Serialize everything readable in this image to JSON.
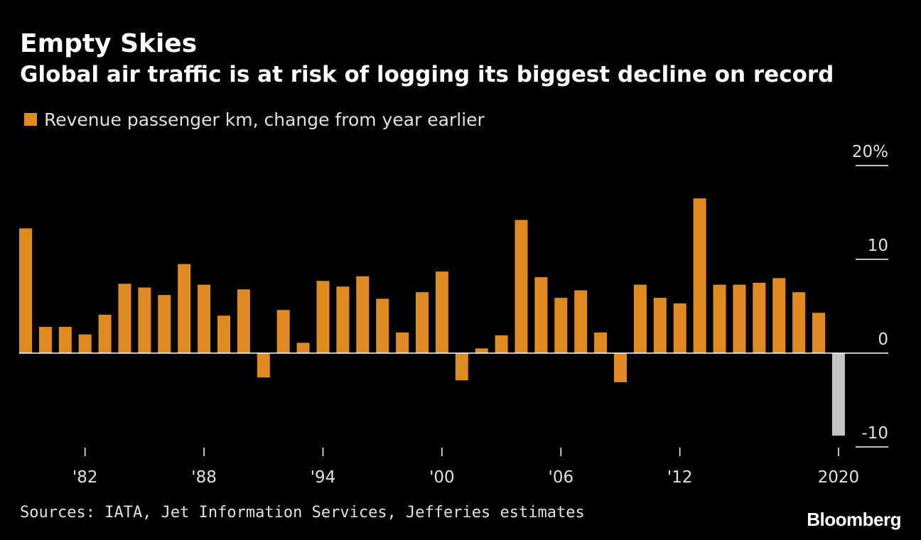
{
  "header": {
    "title": "Empty Skies",
    "subtitle": "Global air traffic is at risk of logging its biggest decline on record"
  },
  "legend": {
    "label": "Revenue passenger km, change from year earlier"
  },
  "footer": {
    "source": "Sources: IATA, Jet Information Services, Jefferies estimates",
    "brand": "Bloomberg"
  },
  "colors": {
    "background": "#000000",
    "bar": "#e08a22",
    "estimate_bar": "#c4c4c4",
    "text": "#ffffff"
  },
  "chart_data": {
    "type": "bar",
    "title": "Empty Skies",
    "subtitle": "Global air traffic is at risk of logging its biggest decline on record",
    "series": [
      {
        "name": "Revenue passenger km, change from year earlier",
        "x": [
          1979,
          1980,
          1981,
          1982,
          1983,
          1984,
          1985,
          1986,
          1987,
          1988,
          1989,
          1990,
          1991,
          1992,
          1993,
          1994,
          1995,
          1996,
          1997,
          1998,
          1999,
          2000,
          2001,
          2002,
          2003,
          2004,
          2005,
          2006,
          2007,
          2008,
          2009,
          2010,
          2011,
          2012,
          2013,
          2014,
          2015,
          2016,
          2017,
          2018,
          2019,
          2020
        ],
        "values": [
          13.3,
          2.8,
          2.8,
          2.0,
          4.1,
          7.4,
          7.0,
          6.2,
          9.5,
          7.3,
          4.0,
          6.8,
          -2.6,
          4.6,
          1.1,
          7.7,
          7.1,
          8.2,
          5.8,
          2.2,
          6.5,
          8.7,
          -2.9,
          0.5,
          1.9,
          14.2,
          8.1,
          5.9,
          6.7,
          2.2,
          -3.1,
          7.3,
          5.9,
          5.3,
          16.5,
          7.3,
          7.3,
          7.5,
          8.0,
          6.5,
          4.3,
          -8.8
        ],
        "estimate_index": 41
      }
    ],
    "x_ticks": [
      {
        "x": 1982,
        "label": "'82"
      },
      {
        "x": 1988,
        "label": "'88"
      },
      {
        "x": 1994,
        "label": "'94"
      },
      {
        "x": 2000,
        "label": "'00"
      },
      {
        "x": 2006,
        "label": "'06"
      },
      {
        "x": 2012,
        "label": "'12"
      },
      {
        "x": 2020,
        "label": "2020"
      }
    ],
    "y_ticks": [
      {
        "value": 20,
        "label": "20%"
      },
      {
        "value": 10,
        "label": "10"
      },
      {
        "value": 0,
        "label": "0"
      },
      {
        "value": -10,
        "label": "-10"
      }
    ],
    "ylim": [
      -10,
      20
    ],
    "y_axis_position": "right",
    "legend_position": "top-left",
    "grid": false
  }
}
